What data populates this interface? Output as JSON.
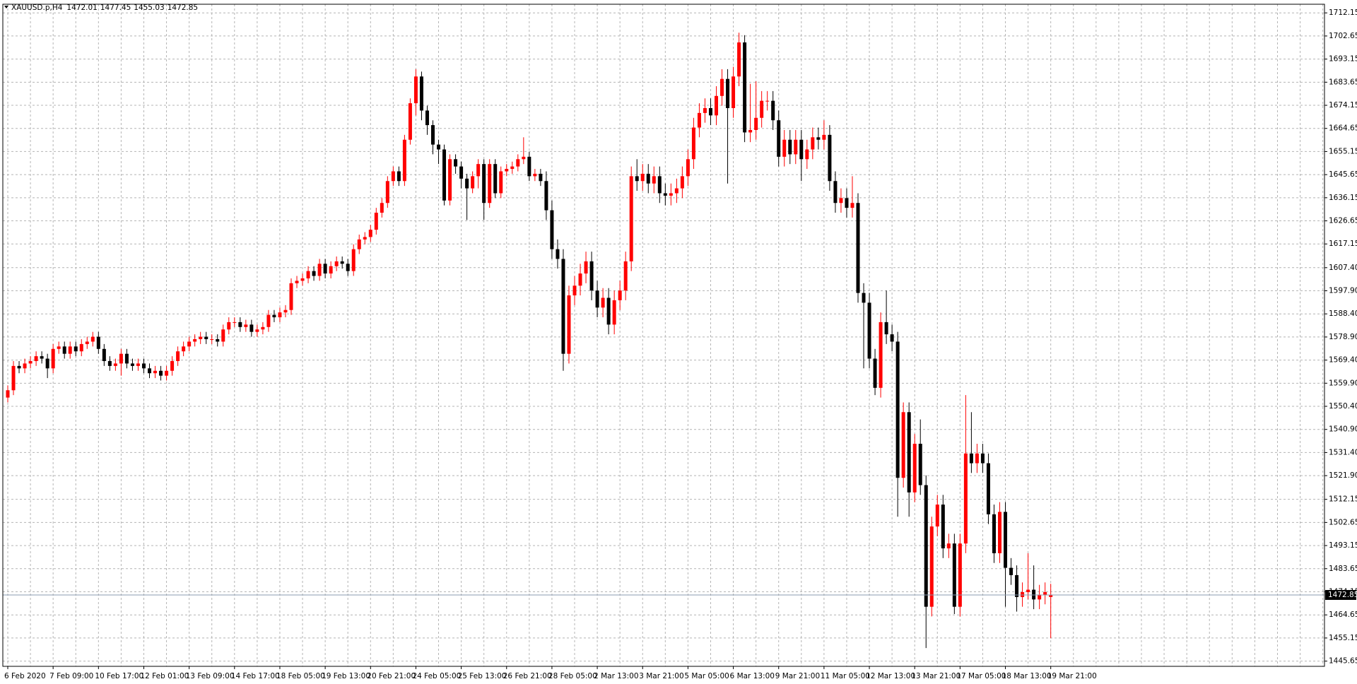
{
  "chart_data": {
    "type": "candlestick",
    "title": "XAUUSD.p,H4",
    "categories": [
      "6 Feb 2020",
      null,
      null,
      null,
      null,
      null,
      null,
      null,
      "7 Feb 09:00",
      null,
      null,
      null,
      null,
      null,
      null,
      null,
      "10 Feb 17:00",
      null,
      null,
      null,
      null,
      null,
      null,
      null,
      "12 Feb 01:00",
      null,
      null,
      null,
      null,
      null,
      null,
      null,
      "13 Feb 09:00",
      null,
      null,
      null,
      null,
      null,
      null,
      null,
      "14 Feb 17:00",
      null,
      null,
      null,
      null,
      null,
      null,
      null,
      "18 Feb 05:00",
      null,
      null,
      null,
      null,
      null,
      null,
      null,
      "19 Feb 13:00",
      null,
      null,
      null,
      null,
      null,
      null,
      null,
      "20 Feb 21:00",
      null,
      null,
      null,
      null,
      null,
      null,
      null,
      "24 Feb 05:00",
      null,
      null,
      null,
      null,
      null,
      null,
      null,
      "25 Feb 13:00",
      null,
      null,
      null,
      null,
      null,
      null,
      null,
      "26 Feb 21:00",
      null,
      null,
      null,
      null,
      null,
      null,
      null,
      "28 Feb 05:00",
      null,
      null,
      null,
      null,
      null,
      null,
      null,
      "2 Mar 13:00",
      null,
      null,
      null,
      null,
      null,
      null,
      null,
      "3 Mar 21:00",
      null,
      null,
      null,
      null,
      null,
      null,
      null,
      "5 Mar 05:00",
      null,
      null,
      null,
      null,
      null,
      null,
      null,
      "6 Mar 13:00",
      null,
      null,
      null,
      null,
      null,
      null,
      null,
      "9 Mar 21:00",
      null,
      null,
      null,
      null,
      null,
      null,
      null,
      "11 Mar 05:00",
      null,
      null,
      null,
      null,
      null,
      null,
      null,
      "12 Mar 13:00",
      null,
      null,
      null,
      null,
      null,
      null,
      null,
      "13 Mar 21:00",
      null,
      null,
      null,
      null,
      null,
      null,
      null,
      "17 Mar 05:00",
      null,
      null,
      null,
      null,
      null,
      null,
      null,
      "18 Mar 13:00",
      null,
      null,
      null,
      null,
      null,
      null,
      null,
      "19 Mar 21:00"
    ],
    "open": [
      1554,
      1557,
      1567,
      1566,
      1568,
      1569,
      1571,
      1570,
      1566,
      1574,
      1575,
      1572,
      1575,
      1573,
      1576,
      1577,
      1579,
      1574,
      1569,
      1567,
      1568,
      1572,
      1568,
      1567,
      1568,
      1566,
      1564,
      1565,
      1563,
      1565,
      1569,
      1573,
      1575,
      1577,
      1578,
      1579,
      1578,
      1578,
      1577,
      1582,
      1585,
      1585,
      1583,
      1584,
      1581,
      1582,
      1583,
      1588,
      1587,
      1589,
      1590,
      1601,
      1602,
      1603,
      1606,
      1604,
      1609,
      1605,
      1608,
      1610,
      1609,
      1606,
      1615,
      1619,
      1620,
      1623,
      1630,
      1634,
      1643,
      1647,
      1643,
      1660,
      1675,
      1686,
      1672,
      1666,
      1658,
      1656,
      1635,
      1652,
      1649,
      1644,
      1640,
      1645,
      1650,
      1634,
      1650,
      1638,
      1647,
      1648,
      1649,
      1652,
      1653,
      1645,
      1646,
      1643,
      1631,
      1615,
      1611,
      1572,
      1596,
      1600,
      1605,
      1610,
      1598,
      1591,
      1595,
      1584,
      1594,
      1598,
      1610,
      1645,
      1643,
      1646,
      1642,
      1645,
      1638,
      1637,
      1638,
      1640,
      1645,
      1652,
      1665,
      1671,
      1673,
      1670,
      1678,
      1685,
      1673,
      1686,
      1700,
      1663,
      1664,
      1669,
      1676,
      1676,
      1668,
      1653,
      1660,
      1654,
      1660,
      1652,
      1656,
      1661,
      1660,
      1662,
      1643,
      1634,
      1636,
      1632,
      1634,
      1597,
      1593,
      1570,
      1558,
      1585,
      1580,
      1577,
      1521,
      1548,
      1515,
      1535,
      1518,
      1468,
      1501,
      1510,
      1492,
      1494,
      1468,
      1494,
      1531,
      1527,
      1531,
      1527,
      1506,
      1490,
      1507,
      1484,
      1481,
      1472,
      1474,
      1475,
      1471,
      1473,
      1472.01
    ],
    "high": [
      1559,
      1569,
      1569,
      1570,
      1571,
      1573,
      1573,
      1572,
      1576,
      1577,
      1577,
      1577,
      1577,
      1578,
      1579,
      1581,
      1581,
      1576,
      1571,
      1570,
      1574,
      1574,
      1570,
      1570,
      1570,
      1568,
      1567,
      1567,
      1567,
      1571,
      1575,
      1577,
      1579,
      1580,
      1581,
      1581,
      1580,
      1580,
      1584,
      1587,
      1587,
      1587,
      1586,
      1586,
      1584,
      1585,
      1590,
      1590,
      1591,
      1592,
      1603,
      1604,
      1605,
      1608,
      1608,
      1611,
      1611,
      1610,
      1612,
      1612,
      1611,
      1617,
      1621,
      1622,
      1625,
      1632,
      1636,
      1645,
      1649,
      1649,
      1662,
      1677,
      1689,
      1688,
      1674,
      1668,
      1660,
      1658,
      1654,
      1654,
      1651,
      1646,
      1647,
      1652,
      1652,
      1652,
      1652,
      1649,
      1650,
      1651,
      1654,
      1661,
      1655,
      1648,
      1648,
      1647,
      1635,
      1619,
      1615,
      1600,
      1604,
      1609,
      1614,
      1614,
      1602,
      1599,
      1599,
      1598,
      1602,
      1614,
      1649,
      1652,
      1650,
      1650,
      1649,
      1649,
      1642,
      1642,
      1644,
      1649,
      1656,
      1669,
      1675,
      1677,
      1677,
      1682,
      1689,
      1689,
      1690,
      1704,
      1703,
      1683,
      1684,
      1680,
      1680,
      1680,
      1672,
      1664,
      1664,
      1664,
      1664,
      1660,
      1665,
      1665,
      1668,
      1666,
      1647,
      1640,
      1640,
      1645,
      1638,
      1601,
      1597,
      1574,
      1589,
      1598,
      1584,
      1581,
      1552,
      1552,
      1539,
      1545,
      1522,
      1505,
      1514,
      1514,
      1498,
      1498,
      1498,
      1555,
      1548,
      1535,
      1535,
      1531,
      1510,
      1511,
      1511,
      1488,
      1485,
      1478,
      1490,
      1485,
      1477,
      1478,
      1477.45
    ],
    "low": [
      1552,
      1555,
      1564,
      1564,
      1566,
      1567,
      1568,
      1562,
      1564,
      1572,
      1570,
      1570,
      1571,
      1571,
      1574,
      1575,
      1572,
      1567,
      1565,
      1565,
      1563,
      1566,
      1565,
      1565,
      1564,
      1562,
      1562,
      1561,
      1561,
      1563,
      1567,
      1571,
      1573,
      1575,
      1576,
      1576,
      1576,
      1575,
      1575,
      1580,
      1583,
      1581,
      1581,
      1579,
      1579,
      1580,
      1581,
      1585,
      1585,
      1587,
      1588,
      1599,
      1600,
      1601,
      1602,
      1602,
      1603,
      1603,
      1606,
      1607,
      1604,
      1604,
      1613,
      1617,
      1618,
      1621,
      1628,
      1632,
      1641,
      1641,
      1641,
      1658,
      1670,
      1668,
      1662,
      1654,
      1650,
      1633,
      1633,
      1646,
      1640,
      1627,
      1638,
      1640,
      1627,
      1632,
      1636,
      1636,
      1645,
      1646,
      1647,
      1650,
      1643,
      1643,
      1641,
      1627,
      1611,
      1607,
      1565,
      1568,
      1592,
      1596,
      1601,
      1594,
      1587,
      1587,
      1580,
      1580,
      1590,
      1594,
      1606,
      1639,
      1639,
      1638,
      1638,
      1634,
      1633,
      1633,
      1634,
      1636,
      1641,
      1648,
      1661,
      1667,
      1666,
      1666,
      1674,
      1642,
      1669,
      1682,
      1659,
      1659,
      1660,
      1665,
      1672,
      1664,
      1649,
      1649,
      1650,
      1650,
      1643,
      1648,
      1652,
      1656,
      1656,
      1639,
      1630,
      1630,
      1628,
      1628,
      1593,
      1566,
      1566,
      1555,
      1554,
      1576,
      1573,
      1505,
      1517,
      1505,
      1511,
      1514,
      1451,
      1464,
      1497,
      1488,
      1488,
      1465,
      1464,
      1490,
      1523,
      1523,
      1523,
      1502,
      1486,
      1486,
      1468,
      1477,
      1466,
      1468,
      1471,
      1467,
      1467,
      1469,
      1455.03
    ],
    "close": [
      1557,
      1567,
      1566,
      1568,
      1569,
      1571,
      1570,
      1566,
      1574,
      1575,
      1572,
      1575,
      1573,
      1576,
      1577,
      1579,
      1574,
      1569,
      1567,
      1568,
      1572,
      1568,
      1567,
      1568,
      1566,
      1564,
      1565,
      1563,
      1565,
      1569,
      1573,
      1575,
      1577,
      1578,
      1579,
      1578,
      1578,
      1577,
      1582,
      1585,
      1585,
      1583,
      1584,
      1581,
      1582,
      1583,
      1588,
      1587,
      1589,
      1590,
      1601,
      1602,
      1603,
      1606,
      1604,
      1609,
      1605,
      1608,
      1610,
      1609,
      1606,
      1615,
      1619,
      1620,
      1623,
      1630,
      1634,
      1643,
      1647,
      1643,
      1660,
      1675,
      1686,
      1672,
      1666,
      1658,
      1656,
      1635,
      1652,
      1649,
      1644,
      1640,
      1645,
      1650,
      1634,
      1650,
      1638,
      1647,
      1648,
      1649,
      1652,
      1653,
      1645,
      1646,
      1643,
      1631,
      1615,
      1611,
      1572,
      1596,
      1600,
      1605,
      1610,
      1598,
      1591,
      1595,
      1584,
      1594,
      1598,
      1610,
      1645,
      1643,
      1646,
      1642,
      1645,
      1638,
      1637,
      1638,
      1640,
      1645,
      1652,
      1665,
      1671,
      1673,
      1670,
      1678,
      1685,
      1673,
      1686,
      1700,
      1663,
      1664,
      1669,
      1676,
      1676,
      1668,
      1653,
      1660,
      1654,
      1660,
      1652,
      1656,
      1661,
      1660,
      1662,
      1643,
      1634,
      1636,
      1632,
      1634,
      1597,
      1593,
      1570,
      1558,
      1585,
      1580,
      1577,
      1521,
      1548,
      1515,
      1535,
      1518,
      1468,
      1501,
      1510,
      1492,
      1494,
      1468,
      1494,
      1531,
      1527,
      1531,
      1527,
      1506,
      1490,
      1507,
      1484,
      1481,
      1472,
      1474,
      1475,
      1471,
      1473,
      1474,
      1472.85
    ],
    "up_color": "#ff0000",
    "down_color": "#000000",
    "ylim": [
      1443.5,
      1715.7
    ],
    "yticks": [
      1445.65,
      1455.15,
      1464.65,
      1474.15,
      1483.65,
      1493.15,
      1502.65,
      1512.15,
      {
        "value": 1521.9,
        "label": "1521.90"
      },
      {
        "value": 1531.4,
        "label": "1531.40"
      },
      {
        "value": 1540.9,
        "label": "1540.90"
      },
      {
        "value": 1550.4,
        "label": "1550.40"
      },
      {
        "value": 1559.9,
        "label": "1559.90"
      },
      {
        "value": 1569.4,
        "label": "1569.40"
      },
      {
        "value": 1578.9,
        "label": "1578.90"
      },
      {
        "value": 1588.4,
        "label": "1588.40"
      },
      {
        "value": 1597.9,
        "label": "1597.90"
      },
      {
        "value": 1607.4,
        "label": "1607.40"
      },
      1617.15,
      1626.65,
      1636.15,
      1645.65,
      1655.15,
      1664.65,
      1674.15,
      1683.65,
      1693.15,
      1702.65,
      1712.15
    ],
    "grid": true
  }
}
